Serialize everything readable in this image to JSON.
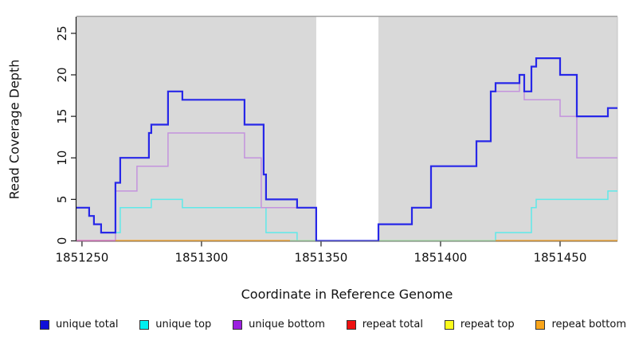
{
  "chart_data": {
    "type": "line",
    "subtype": "step-coverage",
    "xlabel": "Coordinate in Reference Genome",
    "ylabel": "Read Coverage Depth",
    "xlim": [
      1851247.7,
      1851474
    ],
    "ylim": [
      0,
      27
    ],
    "x_ticks": [
      {
        "value": 1851250,
        "label": "1851250"
      },
      {
        "value": 1851300,
        "label": "1851300"
      },
      {
        "value": 1851350,
        "label": "1851350"
      },
      {
        "value": 1851400,
        "label": "1851400"
      },
      {
        "value": 1851450,
        "label": "1851450"
      }
    ],
    "y_ticks": [
      {
        "value": 0,
        "label": "0"
      },
      {
        "value": 5,
        "label": "5"
      },
      {
        "value": 10,
        "label": "10"
      },
      {
        "value": 15,
        "label": "15"
      },
      {
        "value": 20,
        "label": "20"
      },
      {
        "value": 25,
        "label": "25"
      }
    ],
    "panel_bg": "#d9d9d9",
    "gap_region": {
      "from": 1851348,
      "to": 1851374,
      "color": "#ffffff"
    },
    "grid": false,
    "legend_position": "bottom",
    "series": [
      {
        "name": "unique total",
        "color": "#2727e8",
        "points": [
          [
            1851247,
            4
          ],
          [
            1851253,
            3
          ],
          [
            1851255,
            2
          ],
          [
            1851258,
            1
          ],
          [
            1851264,
            7
          ],
          [
            1851266,
            10
          ],
          [
            1851278,
            13
          ],
          [
            1851279,
            14
          ],
          [
            1851286,
            18
          ],
          [
            1851292,
            17
          ],
          [
            1851318,
            14
          ],
          [
            1851326,
            8
          ],
          [
            1851327,
            5
          ],
          [
            1851340,
            4
          ],
          [
            1851348,
            0
          ],
          [
            1851374,
            2
          ],
          [
            1851388,
            4
          ],
          [
            1851396,
            9
          ],
          [
            1851415,
            12
          ],
          [
            1851421,
            18
          ],
          [
            1851423,
            19
          ],
          [
            1851433,
            20
          ],
          [
            1851435,
            18
          ],
          [
            1851438,
            21
          ],
          [
            1851440,
            22
          ],
          [
            1851450,
            20
          ],
          [
            1851457,
            15
          ],
          [
            1851470,
            16
          ],
          [
            1851474,
            16
          ]
        ]
      },
      {
        "name": "unique top",
        "color": "#5fe9e9",
        "points": [
          [
            1851247,
            4
          ],
          [
            1851253,
            3
          ],
          [
            1851255,
            2
          ],
          [
            1851258,
            1
          ],
          [
            1851266,
            4
          ],
          [
            1851279,
            5
          ],
          [
            1851292,
            4
          ],
          [
            1851327,
            1
          ],
          [
            1851340,
            0
          ],
          [
            1851423,
            1
          ],
          [
            1851438,
            4
          ],
          [
            1851440,
            5
          ],
          [
            1851470,
            6
          ],
          [
            1851474,
            6
          ]
        ]
      },
      {
        "name": "unique bottom",
        "color": "#c493dd",
        "points": [
          [
            1851247,
            0
          ],
          [
            1851264,
            6
          ],
          [
            1851273,
            9
          ],
          [
            1851286,
            13
          ],
          [
            1851318,
            10
          ],
          [
            1851325,
            4
          ],
          [
            1851348,
            0
          ],
          [
            1851374,
            2
          ],
          [
            1851388,
            4
          ],
          [
            1851396,
            9
          ],
          [
            1851415,
            12
          ],
          [
            1851421,
            18
          ],
          [
            1851433,
            20
          ],
          [
            1851435,
            17
          ],
          [
            1851450,
            15
          ],
          [
            1851457,
            10
          ],
          [
            1851474,
            10
          ]
        ]
      },
      {
        "name": "repeat total",
        "color": "#dd2222",
        "points": [
          [
            1851247,
            0
          ],
          [
            1851474,
            0
          ]
        ]
      },
      {
        "name": "repeat top",
        "color": "#f2e722",
        "points": [
          [
            1851247,
            0
          ],
          [
            1851474,
            0
          ]
        ]
      },
      {
        "name": "repeat bottom",
        "color": "#ffa217",
        "points": [
          [
            1851247,
            0
          ],
          [
            1851474,
            0
          ]
        ]
      }
    ],
    "baseline_segments": [
      {
        "from": 1851247,
        "to": 1851264,
        "color": "#e468c4"
      },
      {
        "from": 1851264,
        "to": 1851337,
        "color": "#ffa217"
      },
      {
        "from": 1851337,
        "to": 1851348,
        "color": "#a6dfa6"
      },
      {
        "from": 1851374,
        "to": 1851423,
        "color": "#a6dfa6"
      },
      {
        "from": 1851423,
        "to": 1851474,
        "color": "#ffa217"
      }
    ],
    "draw_order": [
      5,
      4,
      3,
      1,
      2,
      "baseline",
      0
    ],
    "legend": [
      {
        "label": "unique total",
        "color": "#0f0fd8"
      },
      {
        "label": "unique top",
        "color": "#00f0f0"
      },
      {
        "label": "unique bottom",
        "color": "#9c20e0"
      },
      {
        "label": "repeat total",
        "color": "#ee1111"
      },
      {
        "label": "repeat top",
        "color": "#fbfb1c"
      },
      {
        "label": "repeat bottom",
        "color": "#f9a51a"
      }
    ]
  }
}
